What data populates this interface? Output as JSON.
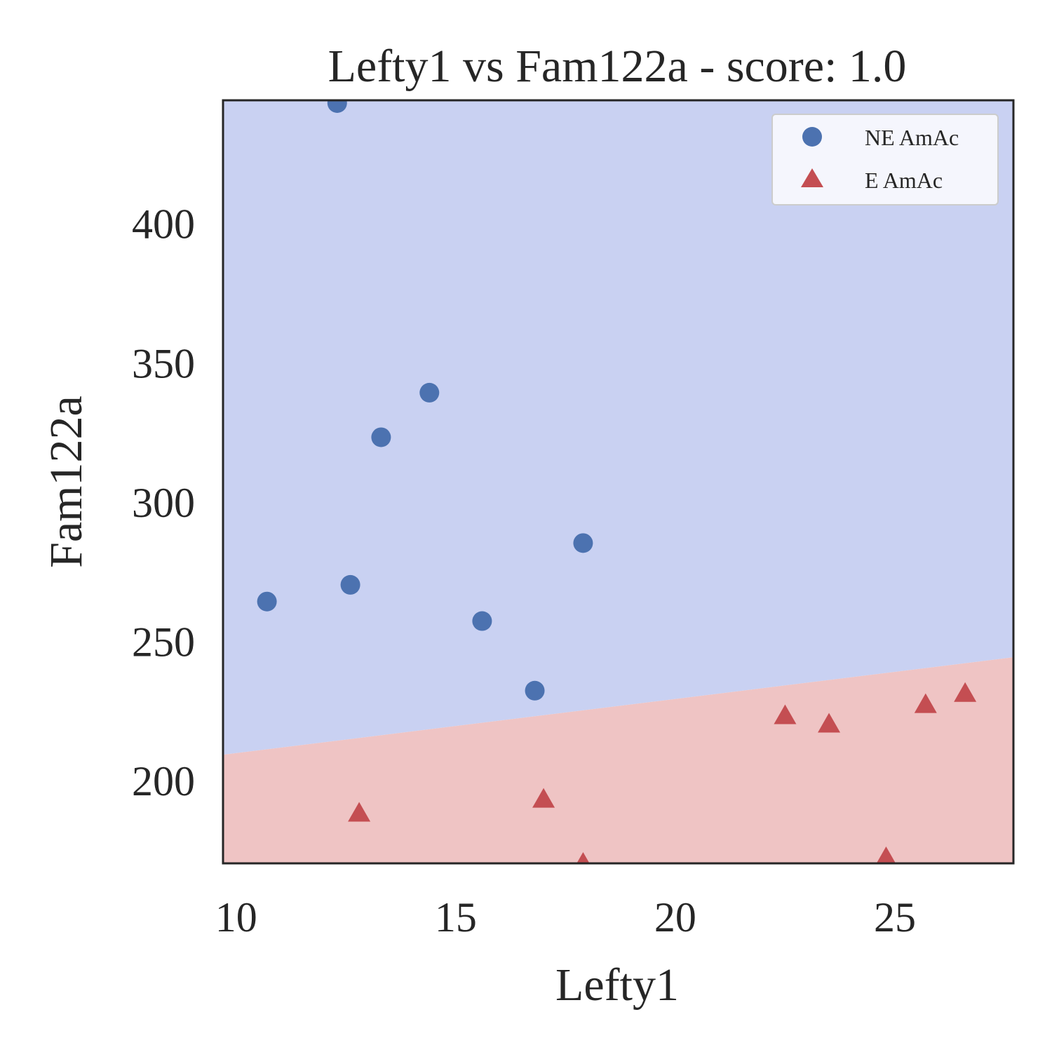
{
  "chart_data": {
    "type": "scatter",
    "title": "Lefty1 vs Fam122a - score: 1.0",
    "xlabel": "Lefty1",
    "ylabel": "Fam122a",
    "xlim": [
      9.7,
      27.7
    ],
    "ylim": [
      170,
      444
    ],
    "xticks": [
      10,
      15,
      20,
      25
    ],
    "yticks": [
      200,
      250,
      300,
      350,
      400
    ],
    "grid": false,
    "legend_position": "top-right",
    "decision_boundary": {
      "x": [
        9.7,
        27.7
      ],
      "y": [
        209,
        244
      ],
      "upper_region_color": "#c9d1f2",
      "lower_region_color": "#efc4c4"
    },
    "series": [
      {
        "name": "NE AmAc",
        "marker": "circle",
        "color": "#4c72b0",
        "points": [
          [
            12.3,
            443
          ],
          [
            14.4,
            339
          ],
          [
            13.3,
            323
          ],
          [
            17.9,
            285
          ],
          [
            12.6,
            270
          ],
          [
            10.7,
            264
          ],
          [
            15.6,
            257
          ],
          [
            16.8,
            232
          ]
        ]
      },
      {
        "name": "E AmAc",
        "marker": "triangle",
        "color": "#c44e52",
        "points": [
          [
            26.6,
            231
          ],
          [
            25.7,
            227
          ],
          [
            22.5,
            223
          ],
          [
            23.5,
            220
          ],
          [
            17.0,
            193
          ],
          [
            12.8,
            188
          ],
          [
            17.9,
            170
          ],
          [
            24.8,
            172
          ]
        ]
      }
    ]
  }
}
